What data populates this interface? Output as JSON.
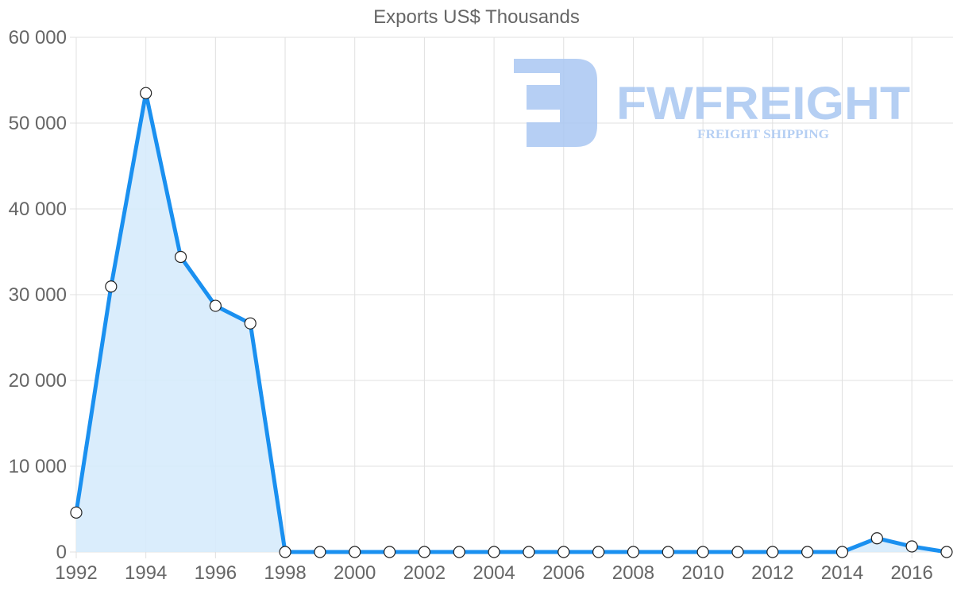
{
  "chart_data": {
    "type": "line",
    "title": "Exports US$ Thousands",
    "xlabel": "",
    "ylabel": "",
    "ylim": [
      0,
      60000
    ],
    "yticks": [
      "0",
      "10 000",
      "20 000",
      "30 000",
      "40 000",
      "50 000",
      "60 000"
    ],
    "xticks": [
      "1992",
      "1994",
      "1996",
      "1998",
      "2000",
      "2002",
      "2004",
      "2006",
      "2008",
      "2010",
      "2012",
      "2014",
      "2016"
    ],
    "grid": true,
    "legend": null,
    "fill": true,
    "line_color": "#1a90f0",
    "fill_color": "#d6ebfc",
    "x": [
      1992,
      1993,
      1994,
      1995,
      1996,
      1997,
      1998,
      1999,
      2000,
      2001,
      2002,
      2003,
      2004,
      2005,
      2006,
      2007,
      2008,
      2009,
      2010,
      2011,
      2012,
      2013,
      2014,
      2015,
      2016,
      2017
    ],
    "series": [
      {
        "name": "Exports US$ Thousands",
        "values": [
          4600,
          30950,
          53500,
          34400,
          28700,
          26650,
          0,
          0,
          0,
          0,
          0,
          0,
          0,
          0,
          0,
          0,
          0,
          0,
          0,
          0,
          0,
          0,
          0,
          1600,
          650,
          0
        ]
      }
    ]
  },
  "watermark": {
    "brand": "FWFREIGHT",
    "tagline": "FREIGHT SHIPPING"
  }
}
